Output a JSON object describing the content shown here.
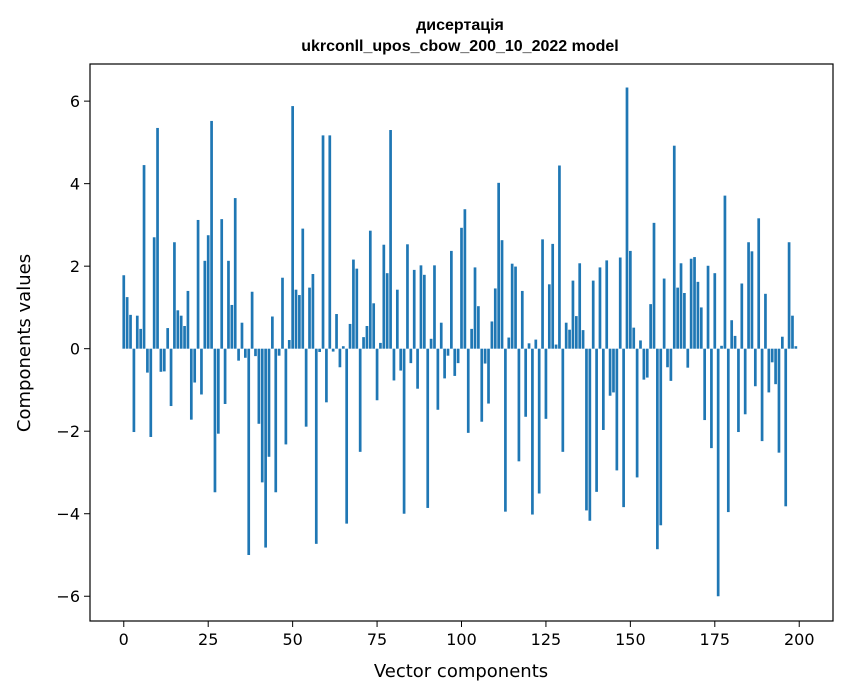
{
  "chart_data": {
    "type": "bar",
    "title": "дисертація",
    "subtitle": "ukrconll_upos_cbow_200_10_2022 model",
    "xlabel": "Vector components",
    "ylabel": "Components values",
    "xlim": [
      -10,
      210
    ],
    "ylim": [
      -6.6,
      6.9
    ],
    "xticks": [
      0,
      25,
      50,
      75,
      100,
      125,
      150,
      175,
      200
    ],
    "yticks": [
      -6,
      -4,
      -2,
      0,
      2,
      4,
      6
    ],
    "xtick_labels": [
      "0",
      "25",
      "50",
      "75",
      "100",
      "125",
      "150",
      "175",
      "200"
    ],
    "ytick_labels": [
      "−6",
      "−4",
      "−2",
      "0",
      "2",
      "4",
      "6"
    ],
    "grid": false,
    "bar_color": "#1f77b4",
    "values": [
      1.78,
      1.25,
      0.82,
      -2.02,
      0.8,
      0.48,
      4.45,
      -0.58,
      -2.14,
      2.7,
      5.35,
      -0.56,
      -0.55,
      0.5,
      -1.39,
      2.58,
      0.93,
      0.8,
      0.55,
      1.4,
      -1.72,
      -0.82,
      3.12,
      -1.11,
      2.13,
      2.75,
      5.52,
      -3.48,
      -2.06,
      3.14,
      -1.34,
      2.13,
      1.06,
      3.65,
      -0.29,
      0.63,
      -0.22,
      -5.0,
      1.38,
      -0.18,
      -1.82,
      -3.24,
      -4.82,
      -2.62,
      0.78,
      -3.48,
      -0.17,
      1.72,
      -2.32,
      0.21,
      5.88,
      1.43,
      1.3,
      2.91,
      -1.89,
      1.48,
      1.81,
      -4.73,
      -0.08,
      5.17,
      -1.3,
      5.17,
      -0.07,
      0.84,
      -0.45,
      0.06,
      -4.24,
      0.6,
      2.16,
      1.94,
      -2.5,
      0.28,
      0.55,
      2.86,
      1.1,
      -1.25,
      0.14,
      2.52,
      1.83,
      5.3,
      -0.77,
      1.43,
      -0.53,
      -4.0,
      2.53,
      -0.35,
      1.91,
      -0.97,
      2.02,
      1.79,
      -3.86,
      0.24,
      2.02,
      -1.48,
      0.63,
      -0.72,
      -0.17,
      2.37,
      -0.66,
      -0.35,
      2.93,
      3.38,
      -2.04,
      0.48,
      1.97,
      1.03,
      -1.77,
      -0.36,
      -1.33,
      0.66,
      1.46,
      4.02,
      2.63,
      -3.95,
      0.27,
      2.06,
      1.99,
      -2.73,
      1.4,
      -1.65,
      0.13,
      -4.02,
      0.22,
      -3.51,
      2.65,
      -1.7,
      1.56,
      2.54,
      0.1,
      4.44,
      -2.5,
      0.63,
      0.46,
      1.65,
      0.79,
      2.07,
      0.45,
      -3.92,
      -4.17,
      1.65,
      -3.47,
      1.97,
      -1.97,
      2.14,
      -1.14,
      -1.06,
      -2.95,
      2.21,
      -3.84,
      6.33,
      2.37,
      0.51,
      -3.12,
      0.2,
      -0.75,
      -0.7,
      1.08,
      3.05,
      -4.86,
      -4.28,
      1.7,
      -0.45,
      -0.78,
      4.92,
      1.48,
      2.07,
      1.35,
      -0.46,
      2.18,
      2.22,
      1.62,
      1.0,
      -1.73,
      2.01,
      -2.41,
      1.83,
      -6.0,
      0.07,
      3.71,
      -3.96,
      0.69,
      0.31,
      -2.02,
      1.58,
      -1.59,
      2.58,
      2.36,
      -0.91,
      3.16,
      -2.24,
      1.33,
      -1.06,
      -0.33,
      -0.86,
      -2.52,
      0.29,
      -3.82,
      2.58,
      0.8,
      0.06
    ]
  }
}
